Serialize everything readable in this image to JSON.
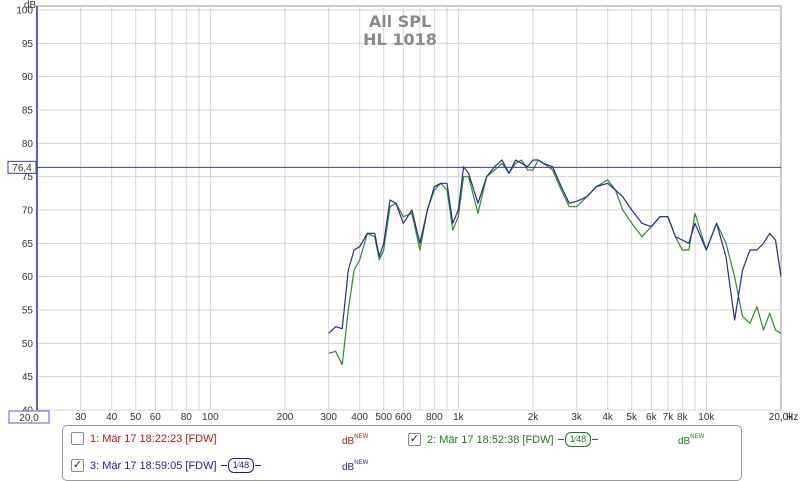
{
  "chart_data": {
    "type": "line",
    "title": "All SPL",
    "subtitle": "HL 1018",
    "ylabel": "dB",
    "xlabel": "Hz",
    "x_scale": "log",
    "xlim": [
      20,
      20000
    ],
    "ylim": [
      40,
      100
    ],
    "grid": true,
    "y_ticks": [
      "40",
      "45",
      "50",
      "55",
      "60",
      "65",
      "70",
      "75",
      "80",
      "85",
      "90",
      "95",
      "100"
    ],
    "x_ticks": [
      {
        "v": 30,
        "label": "30"
      },
      {
        "v": 40,
        "label": "40"
      },
      {
        "v": 50,
        "label": "50"
      },
      {
        "v": 60,
        "label": "60"
      },
      {
        "v": 80,
        "label": "80"
      },
      {
        "v": 100,
        "label": "100"
      },
      {
        "v": 200,
        "label": "200"
      },
      {
        "v": 300,
        "label": "300"
      },
      {
        "v": 400,
        "label": "400"
      },
      {
        "v": 500,
        "label": "500"
      },
      {
        "v": 600,
        "label": "600"
      },
      {
        "v": 800,
        "label": "800"
      },
      {
        "v": 1000,
        "label": "1k"
      },
      {
        "v": 2000,
        "label": "2k"
      },
      {
        "v": 3000,
        "label": "3k"
      },
      {
        "v": 4000,
        "label": "4k"
      },
      {
        "v": 5000,
        "label": "5k"
      },
      {
        "v": 6000,
        "label": "6k"
      },
      {
        "v": 7000,
        "label": "7k"
      },
      {
        "v": 8000,
        "label": "8k"
      },
      {
        "v": 10000,
        "label": "10k"
      },
      {
        "v": 20000,
        "label": "20,0k"
      }
    ],
    "x_start_label": "20,0",
    "reference_line": {
      "value": 76.4,
      "label": "76,4",
      "color": "#3b3b9e"
    },
    "series": [
      {
        "color": "#2e8b2e",
        "x": [
          300,
          320,
          340,
          360,
          380,
          400,
          430,
          460,
          480,
          500,
          530,
          560,
          600,
          650,
          700,
          750,
          800,
          850,
          900,
          950,
          1000,
          1050,
          1100,
          1200,
          1300,
          1400,
          1500,
          1600,
          1700,
          1800,
          1900,
          2000,
          2100,
          2200,
          2400,
          2600,
          2800,
          3000,
          3300,
          3600,
          4000,
          4300,
          4600,
          5000,
          5500,
          6000,
          6500,
          7000,
          7500,
          8000,
          8500,
          9000,
          10000,
          11000,
          12000,
          13000,
          14000,
          15000,
          16000,
          17000,
          18000,
          19000,
          20000
        ],
        "y": [
          48.5,
          48.8,
          46.8,
          55,
          61,
          62.5,
          66.5,
          66,
          62.5,
          64,
          70.5,
          71,
          69,
          69.5,
          64,
          70,
          73,
          74,
          73,
          67,
          69,
          75,
          75,
          69.5,
          75,
          76,
          77,
          75.5,
          77,
          77.5,
          76,
          76,
          77.5,
          77,
          76,
          73,
          70.5,
          70.5,
          72,
          73.5,
          74.5,
          73,
          70,
          68,
          66,
          67.5,
          69,
          69,
          66,
          64,
          64,
          69.5,
          64,
          68,
          65,
          60,
          54,
          53,
          55.5,
          52,
          54.5,
          52,
          51.5
        ]
      },
      {
        "color": "#2b2b8c",
        "x": [
          300,
          320,
          340,
          360,
          380,
          400,
          430,
          460,
          480,
          500,
          530,
          560,
          600,
          650,
          700,
          750,
          800,
          850,
          900,
          950,
          1000,
          1050,
          1100,
          1200,
          1300,
          1400,
          1500,
          1600,
          1700,
          1800,
          1900,
          2000,
          2100,
          2200,
          2400,
          2600,
          2800,
          3000,
          3300,
          3600,
          4000,
          4300,
          4600,
          5000,
          5500,
          6000,
          6500,
          7000,
          7500,
          8000,
          8500,
          9000,
          10000,
          11000,
          12000,
          13000,
          14000,
          15000,
          16000,
          17000,
          18000,
          19000,
          20000
        ],
        "y": [
          51.5,
          52.5,
          52.2,
          61,
          64,
          64.5,
          66.5,
          66.5,
          63,
          65,
          71.5,
          71,
          68,
          70,
          65,
          70,
          73.5,
          74,
          74,
          68,
          70,
          76.5,
          75.5,
          71,
          75,
          76.5,
          77.5,
          75.5,
          77.5,
          77,
          76.5,
          77.5,
          77.5,
          77,
          76.5,
          73.5,
          71,
          71.3,
          72,
          73.5,
          74,
          73,
          72,
          70,
          68,
          67.5,
          69,
          69,
          66,
          65.5,
          65,
          68,
          64,
          68,
          63,
          53.5,
          61,
          64,
          64,
          65,
          66.5,
          65.5,
          60
        ]
      }
    ]
  },
  "legend": {
    "entries": [
      {
        "checked": false,
        "label": "1: Mär 17 18:22:23 [FDW]",
        "smoothing": "",
        "unit": "dB",
        "unit_sup": "NEW",
        "color": "#b01818"
      },
      {
        "checked": true,
        "label": "2: Mär 17 18:52:38 [FDW]",
        "smoothing": "1⁄48",
        "unit": "dB",
        "unit_sup": "NEW",
        "color": "#1c7a1c"
      },
      {
        "checked": true,
        "label": "3: Mär 17 18:59:05 [FDW]",
        "smoothing": "1⁄48",
        "unit": "dB",
        "unit_sup": "NEW",
        "color": "#1f1f8c"
      }
    ],
    "check_glyph": "✓"
  }
}
